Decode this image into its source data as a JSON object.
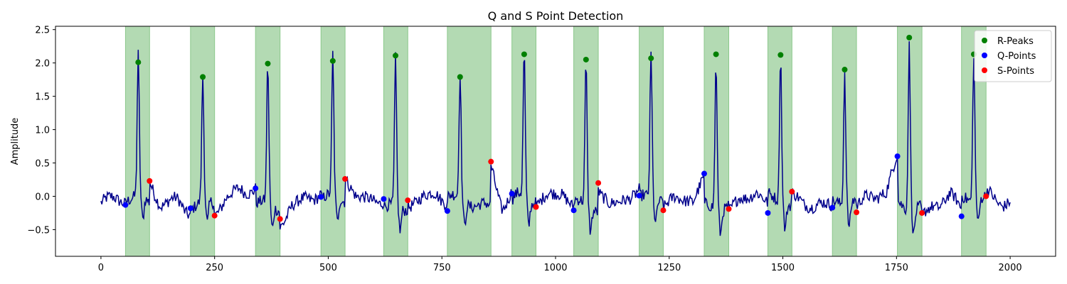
{
  "chart_data": {
    "type": "line",
    "title": "Q and S Point Detection",
    "xlabel": "",
    "ylabel": "Amplitude",
    "xlim": [
      -100,
      2100
    ],
    "ylim": [
      -0.9,
      2.55
    ],
    "xticks": [
      0,
      250,
      500,
      750,
      1000,
      1250,
      1500,
      1750,
      2000
    ],
    "yticks": [
      -0.5,
      0.0,
      0.5,
      1.0,
      1.5,
      2.0,
      2.5
    ],
    "ytick_labels": [
      "−0.5",
      "0.0",
      "0.5",
      "1.0",
      "1.5",
      "2.0",
      "2.5"
    ],
    "grid": false,
    "legend_position": "top-right",
    "signal_color": "#00008b",
    "highlight_color": "#b3dab3",
    "highlight_edge_color": "#8cc88c",
    "qrs_windows": [
      [
        54,
        107
      ],
      [
        197,
        250
      ],
      [
        340,
        394
      ],
      [
        484,
        537
      ],
      [
        622,
        675
      ],
      [
        762,
        858
      ],
      [
        904,
        957
      ],
      [
        1040,
        1094
      ],
      [
        1184,
        1237
      ],
      [
        1327,
        1381
      ],
      [
        1467,
        1520
      ],
      [
        1609,
        1662
      ],
      [
        1752,
        1806
      ],
      [
        1893,
        1947
      ]
    ],
    "r_peaks": {
      "x": [
        82,
        224,
        367,
        510,
        648,
        790,
        931,
        1067,
        1210,
        1353,
        1495,
        1636,
        1778,
        1920
      ],
      "y": [
        2.01,
        1.79,
        1.99,
        2.03,
        2.11,
        1.79,
        2.13,
        2.05,
        2.07,
        2.13,
        2.12,
        1.9,
        2.38,
        2.13
      ]
    },
    "q_points": {
      "x": [
        54,
        197,
        340,
        484,
        622,
        762,
        904,
        1040,
        1184,
        1327,
        1467,
        1609,
        1752,
        1893
      ],
      "y": [
        -0.13,
        -0.18,
        0.12,
        -0.01,
        -0.04,
        -0.22,
        0.04,
        -0.21,
        0.01,
        0.34,
        -0.25,
        -0.17,
        0.6,
        -0.3
      ]
    },
    "s_points": {
      "x": [
        107,
        250,
        394,
        537,
        675,
        858,
        957,
        1094,
        1237,
        1381,
        1520,
        1662,
        1806,
        1947
      ],
      "y": [
        0.23,
        -0.29,
        -0.34,
        0.26,
        -0.06,
        0.52,
        -0.16,
        0.2,
        -0.21,
        -0.19,
        0.07,
        -0.24,
        -0.25,
        0.0
      ]
    },
    "legend": [
      {
        "label": "R-Peaks",
        "color": "#008000"
      },
      {
        "label": "Q-Points",
        "color": "#0000ff"
      },
      {
        "label": "S-Points",
        "color": "#ff0000"
      }
    ]
  }
}
